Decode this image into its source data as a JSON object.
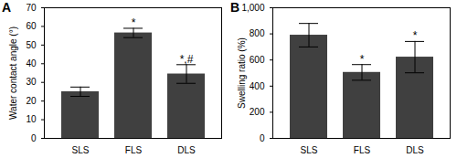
{
  "chart_data": [
    {
      "type": "bar",
      "title": "A",
      "y_label": "Water contact angle (°)",
      "categories": [
        "SLS",
        "FLS",
        "DLS"
      ],
      "values": [
        25,
        56.5,
        34.5
      ],
      "errors": [
        2.5,
        2.5,
        5
      ],
      "annotations": [
        null,
        "*",
        "*,#"
      ],
      "color": "#404040",
      "ylim": [
        0,
        70
      ],
      "yticks": [
        0,
        10,
        20,
        30,
        40,
        50,
        60,
        70
      ]
    },
    {
      "type": "bar",
      "title": "B",
      "y_label": "Swelling ratio (%)",
      "categories": [
        "SLS",
        "FLS",
        "DLS"
      ],
      "values": [
        790,
        505,
        622
      ],
      "errors": [
        90,
        60,
        120
      ],
      "annotations": [
        null,
        "*",
        "*"
      ],
      "color": "#404040",
      "ylim": [
        0,
        1000
      ],
      "yticks": [
        0,
        200,
        400,
        600,
        800,
        {
          "value": 1000,
          "label": "1,000"
        }
      ]
    }
  ]
}
